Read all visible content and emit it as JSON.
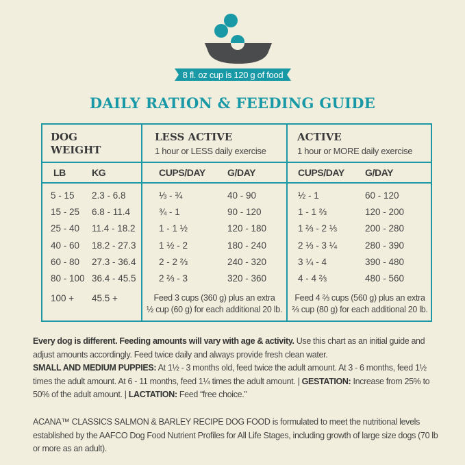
{
  "header": {
    "icon": "bowl-with-food-icon",
    "cup_note": "8 fl. oz cup is 120 g of food",
    "title": "DAILY RATION & FEEDING GUIDE"
  },
  "colors": {
    "accent": "#1999a6",
    "bowl": "#4a4b4d",
    "background": "#f1eedd"
  },
  "table": {
    "weight_header": [
      "DOG",
      "WEIGHT"
    ],
    "less_active": {
      "title": "LESS ACTIVE",
      "subtitle": "1 hour or LESS daily exercise"
    },
    "active": {
      "title": "ACTIVE",
      "subtitle": "1 hour or MORE daily exercise"
    },
    "columns": [
      "LB",
      "KG",
      "CUPS/DAY",
      "G/DAY",
      "CUPS/DAY",
      "G/DAY"
    ],
    "rows": [
      [
        "5 - 15",
        "2.3 - 6.8",
        "⅓ - ¾",
        "40 - 90",
        "½ - 1",
        "60 - 120"
      ],
      [
        "15 - 25",
        "6.8 - 11.4",
        "¾ - 1",
        "90 - 120",
        "1 - 1 ⅔",
        "120 - 200"
      ],
      [
        "25 - 40",
        "11.4 - 18.2",
        "1 - 1 ½",
        "120 - 180",
        "1 ⅔ - 2 ⅓",
        "200 - 280"
      ],
      [
        "40 - 60",
        "18.2 - 27.3",
        "1 ½ - 2",
        "180 - 240",
        "2 ⅓ - 3 ¼",
        "280 - 390"
      ],
      [
        "60 - 80",
        "27.3 - 36.4",
        "2 - 2 ⅔",
        "240 - 320",
        "3 ¼ - 4",
        "390 - 480"
      ],
      [
        "80 - 100",
        "36.4 - 45.5",
        "2 ⅔ - 3",
        "320 - 360",
        "4 - 4 ⅔",
        "480 - 560"
      ]
    ],
    "last_row": {
      "lb": "100 +",
      "kg": "45.5 +",
      "less_active_note": [
        "Feed 3 cups (360 g) plus an extra",
        "½ cup (60 g) for each additional 20 lb."
      ],
      "active_note": [
        "Feed 4 ⅔ cups (560 g) plus an extra",
        "⅔ cup (80 g) for each additional 20 lb."
      ]
    }
  },
  "notes": {
    "intro_bold": "Every dog is different. Feeding amounts will vary with age & activity.",
    "intro": " Use this chart as an initial guide and adjust amounts accordingly. Feed twice daily and always provide fresh clean water.",
    "puppies_label": "SMALL AND MEDIUM PUPPIES:",
    "puppies": " At 1½ - 3 months old, feed twice the adult amount. At 3 - 6 months, feed 1½ times the adult amount. At 6 - 11 months, feed 1¼ times the adult amount. | ",
    "gestation_label": "GESTATION:",
    "gestation": " Increase from 25% to 50% of the adult amount. | ",
    "lactation_label": "LACTATION:",
    "lactation": " Feed “free choice.”",
    "aafco": "ACANA™ CLASSICS SALMON & BARLEY RECIPE DOG FOOD is formulated to meet the nutritional levels established by the AAFCO Dog Food Nutrient Profiles for All Life Stages, including growth of large size dogs (70 lb or more as an adult)."
  }
}
